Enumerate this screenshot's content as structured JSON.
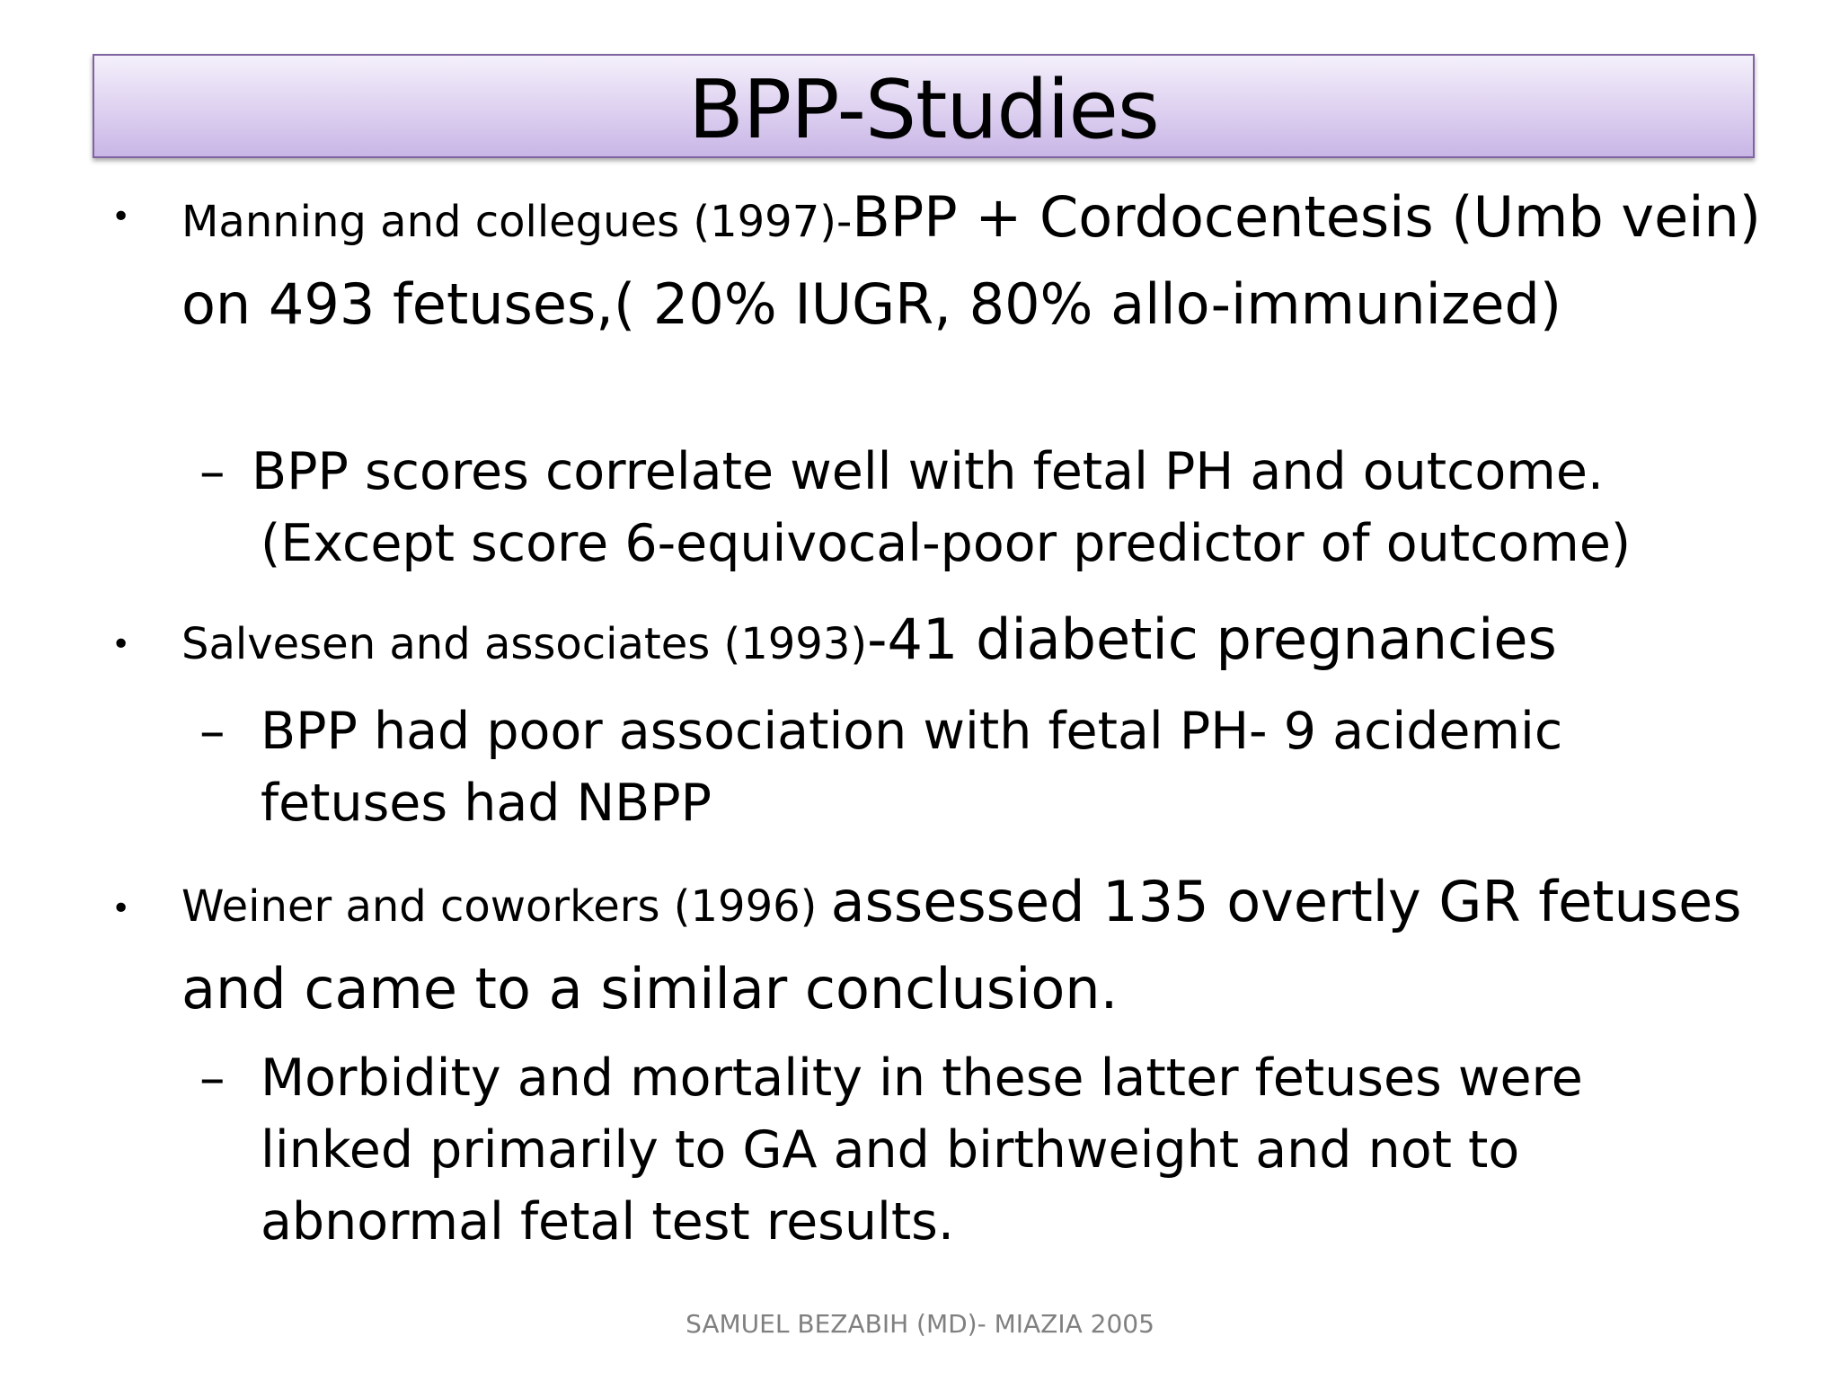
{
  "slide": {
    "title": "BPP-Studies",
    "bullet_char": "•",
    "dash_char": "–",
    "items": [
      {
        "lead": "Manning and collegues (1997)-",
        "text": "BPP + Cordocentesis (Umb vein) on  493 fetuses,( 20% IUGR, 80% allo-immunized)",
        "sub": "BPP scores correlate well with fetal PH and outcome. (Except score 6-equivocal-poor predictor of outcome)"
      },
      {
        "lead": "Salvesen and associates (1993)",
        "text": "-41 diabetic pregnancies",
        "sub": "BPP had  poor association with fetal PH- 9 acidemic fetuses had NBPP"
      },
      {
        "lead": "Weiner and coworkers (1996) ",
        "text": "assessed 135 overtly GR fetuses and came to a similar conclusion.",
        "sub": "Morbidity and mortality in these latter fetuses were linked primarily to GA and birthweight and not to abnormal fetal test results."
      }
    ],
    "footer": "SAMUEL BEZABIH (MD)- MIAZIA 2005"
  }
}
